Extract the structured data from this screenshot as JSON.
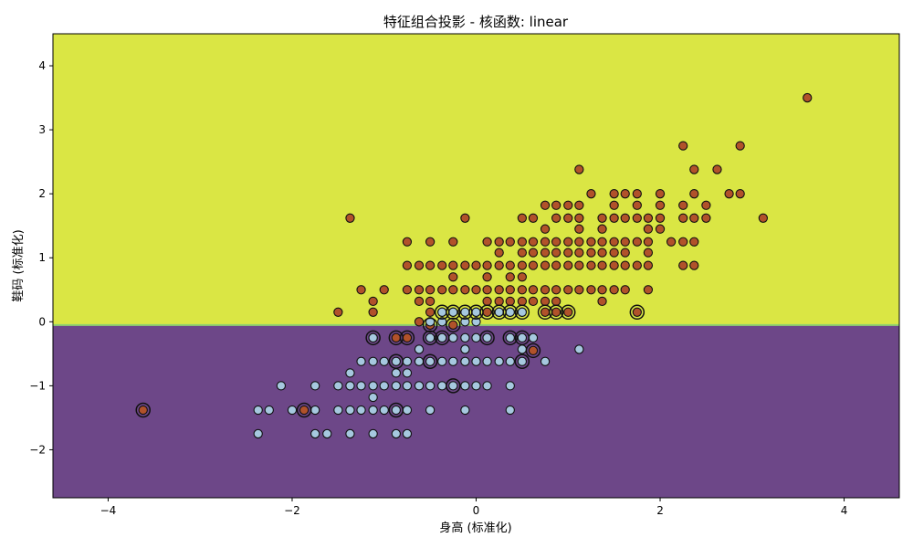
{
  "chart_data": {
    "type": "scatter",
    "title": "特征组合投影 - 核函数: linear",
    "xlabel": "身高 (标准化)",
    "ylabel": "鞋码 (标准化)",
    "xlim": [
      -4.6,
      4.6
    ],
    "ylim": [
      -2.75,
      4.5
    ],
    "xticks": [
      -4,
      -2,
      0,
      2,
      4
    ],
    "yticks": [
      -2,
      -1,
      0,
      1,
      2,
      3,
      4
    ],
    "x_tick_labels": [
      "−4",
      "−2",
      "0",
      "2",
      "4"
    ],
    "y_tick_labels": [
      "−2",
      "−1",
      "0",
      "1",
      "2",
      "3",
      "4"
    ],
    "grid": false,
    "decision_boundary_y": -0.05,
    "colors": {
      "upper_region": "#dae644",
      "lower_region": "#6d4788",
      "boundary_line": "#8fd16c",
      "class_upper": "#b1522a",
      "class_lower": "#a6c8df",
      "edge": "#111111"
    },
    "series": [
      {
        "class": "upper",
        "points": [
          [
            3.6,
            3.5
          ],
          [
            2.25,
            2.75
          ],
          [
            2.87,
            2.75
          ],
          [
            1.12,
            2.38
          ],
          [
            2.37,
            2.38
          ],
          [
            2.62,
            2.38
          ],
          [
            1.25,
            2.0
          ],
          [
            1.5,
            2.0
          ],
          [
            1.62,
            2.0
          ],
          [
            1.75,
            2.0
          ],
          [
            2.0,
            2.0
          ],
          [
            2.37,
            2.0
          ],
          [
            2.75,
            2.0
          ],
          [
            2.87,
            2.0
          ],
          [
            0.75,
            1.82
          ],
          [
            0.87,
            1.82
          ],
          [
            1.0,
            1.82
          ],
          [
            1.12,
            1.82
          ],
          [
            1.5,
            1.82
          ],
          [
            1.75,
            1.82
          ],
          [
            2.0,
            1.82
          ],
          [
            2.25,
            1.82
          ],
          [
            2.5,
            1.82
          ],
          [
            -1.37,
            1.62
          ],
          [
            -0.12,
            1.62
          ],
          [
            0.5,
            1.62
          ],
          [
            0.62,
            1.62
          ],
          [
            0.87,
            1.62
          ],
          [
            1.0,
            1.62
          ],
          [
            1.12,
            1.62
          ],
          [
            1.37,
            1.62
          ],
          [
            1.5,
            1.62
          ],
          [
            1.62,
            1.62
          ],
          [
            1.75,
            1.62
          ],
          [
            1.87,
            1.62
          ],
          [
            2.0,
            1.62
          ],
          [
            2.25,
            1.62
          ],
          [
            2.37,
            1.62
          ],
          [
            2.5,
            1.62
          ],
          [
            3.12,
            1.62
          ],
          [
            0.75,
            1.45
          ],
          [
            1.12,
            1.45
          ],
          [
            1.37,
            1.45
          ],
          [
            1.87,
            1.45
          ],
          [
            2.0,
            1.45
          ],
          [
            -0.75,
            1.25
          ],
          [
            -0.5,
            1.25
          ],
          [
            -0.25,
            1.25
          ],
          [
            0.12,
            1.25
          ],
          [
            0.25,
            1.25
          ],
          [
            0.37,
            1.25
          ],
          [
            0.5,
            1.25
          ],
          [
            0.62,
            1.25
          ],
          [
            0.75,
            1.25
          ],
          [
            0.87,
            1.25
          ],
          [
            1.0,
            1.25
          ],
          [
            1.12,
            1.25
          ],
          [
            1.25,
            1.25
          ],
          [
            1.37,
            1.25
          ],
          [
            1.5,
            1.25
          ],
          [
            1.62,
            1.25
          ],
          [
            1.75,
            1.25
          ],
          [
            1.87,
            1.25
          ],
          [
            2.12,
            1.25
          ],
          [
            2.25,
            1.25
          ],
          [
            2.37,
            1.25
          ],
          [
            0.25,
            1.08
          ],
          [
            0.5,
            1.08
          ],
          [
            0.62,
            1.08
          ],
          [
            0.75,
            1.08
          ],
          [
            0.87,
            1.08
          ],
          [
            1.0,
            1.08
          ],
          [
            1.12,
            1.08
          ],
          [
            1.25,
            1.08
          ],
          [
            1.37,
            1.08
          ],
          [
            1.5,
            1.08
          ],
          [
            1.62,
            1.08
          ],
          [
            1.87,
            1.08
          ],
          [
            -0.75,
            0.88
          ],
          [
            -0.62,
            0.88
          ],
          [
            -0.5,
            0.88
          ],
          [
            -0.37,
            0.88
          ],
          [
            -0.25,
            0.88
          ],
          [
            -0.12,
            0.88
          ],
          [
            0.0,
            0.88
          ],
          [
            0.12,
            0.88
          ],
          [
            0.25,
            0.88
          ],
          [
            0.37,
            0.88
          ],
          [
            0.5,
            0.88
          ],
          [
            0.62,
            0.88
          ],
          [
            0.75,
            0.88
          ],
          [
            0.87,
            0.88
          ],
          [
            1.0,
            0.88
          ],
          [
            1.12,
            0.88
          ],
          [
            1.25,
            0.88
          ],
          [
            1.37,
            0.88
          ],
          [
            1.5,
            0.88
          ],
          [
            1.62,
            0.88
          ],
          [
            1.75,
            0.88
          ],
          [
            1.87,
            0.88
          ],
          [
            2.25,
            0.88
          ],
          [
            2.37,
            0.88
          ],
          [
            -0.25,
            0.7
          ],
          [
            0.12,
            0.7
          ],
          [
            0.37,
            0.7
          ],
          [
            0.5,
            0.7
          ],
          [
            -1.25,
            0.5
          ],
          [
            -1.0,
            0.5
          ],
          [
            -0.75,
            0.5
          ],
          [
            -0.62,
            0.5
          ],
          [
            -0.5,
            0.5
          ],
          [
            -0.37,
            0.5
          ],
          [
            -0.25,
            0.5
          ],
          [
            -0.12,
            0.5
          ],
          [
            0.0,
            0.5
          ],
          [
            0.12,
            0.5
          ],
          [
            0.25,
            0.5
          ],
          [
            0.37,
            0.5
          ],
          [
            0.5,
            0.5
          ],
          [
            0.62,
            0.5
          ],
          [
            0.75,
            0.5
          ],
          [
            0.87,
            0.5
          ],
          [
            1.0,
            0.5
          ],
          [
            1.12,
            0.5
          ],
          [
            1.25,
            0.5
          ],
          [
            1.37,
            0.5
          ],
          [
            1.5,
            0.5
          ],
          [
            1.62,
            0.5
          ],
          [
            1.87,
            0.5
          ],
          [
            -1.12,
            0.32
          ],
          [
            -0.62,
            0.32
          ],
          [
            -0.5,
            0.32
          ],
          [
            0.12,
            0.32
          ],
          [
            0.25,
            0.32
          ],
          [
            0.37,
            0.32
          ],
          [
            0.5,
            0.32
          ],
          [
            0.62,
            0.32
          ],
          [
            0.75,
            0.32
          ],
          [
            0.87,
            0.32
          ],
          [
            1.37,
            0.32
          ],
          [
            -1.5,
            0.15
          ],
          [
            -1.12,
            0.15
          ],
          [
            -0.5,
            0.15
          ],
          [
            -0.37,
            0.15
          ],
          [
            -0.25,
            0.15
          ],
          [
            0.0,
            0.15
          ],
          [
            0.12,
            0.15
          ],
          [
            0.25,
            0.15
          ],
          [
            0.37,
            0.15
          ],
          [
            0.5,
            0.15
          ],
          [
            0.75,
            0.15
          ],
          [
            0.87,
            0.15
          ],
          [
            1.0,
            0.15
          ],
          [
            1.75,
            0.15
          ],
          [
            -0.62,
            0.0
          ],
          [
            -0.5,
            -0.05
          ],
          [
            -0.25,
            -0.05
          ],
          [
            -0.87,
            -0.25
          ],
          [
            -0.75,
            -0.25
          ],
          [
            -0.37,
            -0.25
          ],
          [
            -1.12,
            -0.25
          ],
          [
            0.62,
            -0.45
          ],
          [
            -3.62,
            -1.38
          ],
          [
            -1.87,
            -1.38
          ]
        ]
      },
      {
        "class": "lower",
        "points": [
          [
            -0.37,
            0.15
          ],
          [
            -0.25,
            0.15
          ],
          [
            -0.12,
            0.15
          ],
          [
            0.0,
            0.15
          ],
          [
            0.25,
            0.15
          ],
          [
            0.37,
            0.15
          ],
          [
            0.5,
            0.15
          ],
          [
            -0.5,
            0.0
          ],
          [
            -0.37,
            0.0
          ],
          [
            -0.12,
            0.0
          ],
          [
            0.0,
            0.0
          ],
          [
            -1.12,
            -0.25
          ],
          [
            -0.5,
            -0.25
          ],
          [
            -0.37,
            -0.25
          ],
          [
            -0.25,
            -0.25
          ],
          [
            -0.12,
            -0.25
          ],
          [
            0.0,
            -0.25
          ],
          [
            0.12,
            -0.25
          ],
          [
            0.37,
            -0.25
          ],
          [
            0.5,
            -0.25
          ],
          [
            0.62,
            -0.25
          ],
          [
            -0.62,
            -0.43
          ],
          [
            -0.12,
            -0.43
          ],
          [
            1.12,
            -0.43
          ],
          [
            0.5,
            -0.43
          ],
          [
            -1.25,
            -0.62
          ],
          [
            -1.12,
            -0.62
          ],
          [
            -1.0,
            -0.62
          ],
          [
            -0.87,
            -0.62
          ],
          [
            -0.75,
            -0.62
          ],
          [
            -0.62,
            -0.62
          ],
          [
            -0.5,
            -0.62
          ],
          [
            -0.37,
            -0.62
          ],
          [
            -0.25,
            -0.62
          ],
          [
            -0.12,
            -0.62
          ],
          [
            0.0,
            -0.62
          ],
          [
            0.12,
            -0.62
          ],
          [
            0.25,
            -0.62
          ],
          [
            0.37,
            -0.62
          ],
          [
            0.5,
            -0.62
          ],
          [
            0.75,
            -0.62
          ],
          [
            -1.37,
            -0.8
          ],
          [
            -0.87,
            -0.8
          ],
          [
            -0.75,
            -0.8
          ],
          [
            -2.12,
            -1.0
          ],
          [
            -1.75,
            -1.0
          ],
          [
            -1.5,
            -1.0
          ],
          [
            -1.37,
            -1.0
          ],
          [
            -1.25,
            -1.0
          ],
          [
            -1.12,
            -1.0
          ],
          [
            -1.0,
            -1.0
          ],
          [
            -0.87,
            -1.0
          ],
          [
            -0.75,
            -1.0
          ],
          [
            -0.62,
            -1.0
          ],
          [
            -0.5,
            -1.0
          ],
          [
            -0.37,
            -1.0
          ],
          [
            -0.25,
            -1.0
          ],
          [
            -0.12,
            -1.0
          ],
          [
            0.0,
            -1.0
          ],
          [
            0.12,
            -1.0
          ],
          [
            0.37,
            -1.0
          ],
          [
            -1.12,
            -1.18
          ],
          [
            -2.37,
            -1.38
          ],
          [
            -2.25,
            -1.38
          ],
          [
            -2.0,
            -1.38
          ],
          [
            -1.75,
            -1.38
          ],
          [
            -1.5,
            -1.38
          ],
          [
            -1.37,
            -1.38
          ],
          [
            -1.25,
            -1.38
          ],
          [
            -1.12,
            -1.38
          ],
          [
            -1.0,
            -1.38
          ],
          [
            -0.87,
            -1.38
          ],
          [
            -0.75,
            -1.38
          ],
          [
            -0.5,
            -1.38
          ],
          [
            -0.12,
            -1.38
          ],
          [
            0.37,
            -1.38
          ],
          [
            -2.37,
            -1.75
          ],
          [
            -1.75,
            -1.75
          ],
          [
            -1.62,
            -1.75
          ],
          [
            -1.37,
            -1.75
          ],
          [
            -1.12,
            -1.75
          ],
          [
            -0.87,
            -1.75
          ],
          [
            -0.75,
            -1.75
          ]
        ]
      }
    ],
    "support_vectors": [
      [
        -0.37,
        0.15
      ],
      [
        -0.25,
        0.15
      ],
      [
        -0.12,
        0.15
      ],
      [
        0.0,
        0.15
      ],
      [
        0.12,
        0.15
      ],
      [
        0.25,
        0.15
      ],
      [
        0.37,
        0.15
      ],
      [
        0.5,
        0.15
      ],
      [
        0.75,
        0.15
      ],
      [
        0.87,
        0.15
      ],
      [
        1.0,
        0.15
      ],
      [
        1.75,
        0.15
      ],
      [
        -0.5,
        -0.05
      ],
      [
        -0.25,
        -0.05
      ],
      [
        -1.12,
        -0.25
      ],
      [
        -0.87,
        -0.25
      ],
      [
        -0.75,
        -0.25
      ],
      [
        -0.5,
        -0.25
      ],
      [
        -0.37,
        -0.25
      ],
      [
        0.12,
        -0.25
      ],
      [
        0.37,
        -0.25
      ],
      [
        0.5,
        -0.25
      ],
      [
        0.62,
        -0.45
      ],
      [
        -0.87,
        -0.62
      ],
      [
        -0.5,
        -0.62
      ],
      [
        0.5,
        -0.62
      ],
      [
        -0.25,
        -1.0
      ],
      [
        -3.62,
        -1.38
      ],
      [
        -1.87,
        -1.38
      ],
      [
        -0.87,
        -1.38
      ]
    ]
  }
}
